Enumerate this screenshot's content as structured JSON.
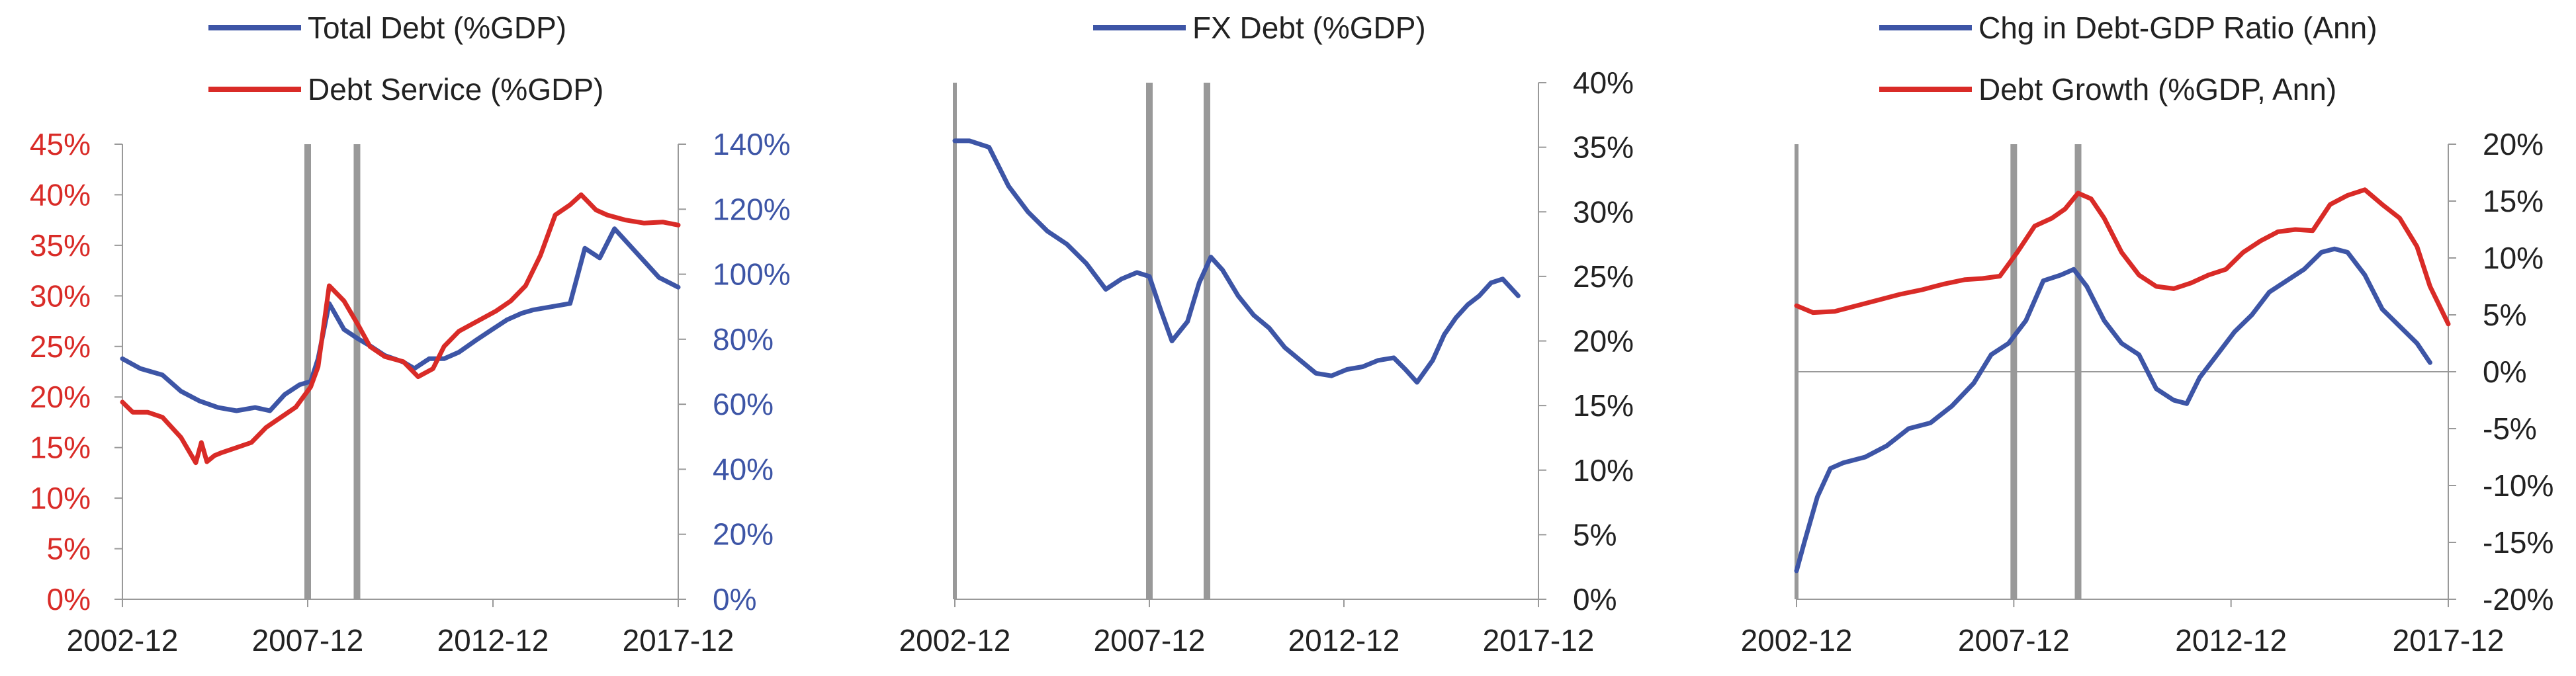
{
  "colors": {
    "blue": "#3d55a6",
    "red": "#d92b27",
    "axis": "#999999",
    "tick_text": "#222222",
    "marker": "#999999"
  },
  "chart_data": [
    {
      "type": "line",
      "title": "",
      "xlabel": "",
      "x_tick_labels": [
        "2002-12",
        "2007-12",
        "2012-12",
        "2017-12"
      ],
      "x_ticks": [
        2002.92,
        2007.92,
        2012.92,
        2017.92
      ],
      "xlim": [
        2002.92,
        2017.92
      ],
      "vlines": [
        2007.92,
        2009.25
      ],
      "legend": [
        "Total Debt (%GDP)",
        "Debt Service (%GDP)"
      ],
      "legend_position": "top",
      "grid": false,
      "y_left": {
        "label": "",
        "ylim": [
          0,
          45
        ],
        "ticks": [
          0,
          5,
          10,
          15,
          20,
          25,
          30,
          35,
          40,
          45
        ],
        "tick_labels": [
          "0%",
          "5%",
          "10%",
          "15%",
          "20%",
          "25%",
          "30%",
          "35%",
          "40%",
          "45%"
        ],
        "color": "red"
      },
      "y_right": {
        "label": "",
        "ylim": [
          0,
          140
        ],
        "ticks": [
          0,
          20,
          40,
          60,
          80,
          100,
          120,
          140
        ],
        "tick_labels": [
          "0%",
          "20%",
          "40%",
          "60%",
          "80%",
          "100%",
          "120%",
          "140%"
        ],
        "color": "blue"
      },
      "series": [
        {
          "name": "Total Debt (%GDP)",
          "axis": "right",
          "color": "blue",
          "x": [
            2002.92,
            2003.4,
            2004.0,
            2004.5,
            2005.0,
            2005.5,
            2006.0,
            2006.5,
            2006.9,
            2007.3,
            2007.7,
            2008.0,
            2008.2,
            2008.5,
            2008.9,
            2009.3,
            2009.6,
            2010.0,
            2010.5,
            2010.8,
            2011.2,
            2011.6,
            2012.0,
            2012.5,
            2012.9,
            2013.3,
            2013.7,
            2014.0,
            2014.5,
            2015.0,
            2015.4,
            2015.8,
            2016.2,
            2016.6,
            2017.0,
            2017.4,
            2017.92
          ],
          "values": [
            74,
            71,
            69,
            64,
            61,
            59,
            58,
            59,
            58,
            63,
            66,
            67,
            74,
            91,
            83,
            80,
            78,
            75,
            73,
            71,
            74,
            74,
            76,
            80,
            83,
            86,
            88,
            89,
            90,
            91,
            108,
            105,
            114,
            109,
            104,
            99,
            96
          ]
        },
        {
          "name": "Debt Service (%GDP)",
          "axis": "left",
          "color": "red",
          "x": [
            2002.92,
            2003.2,
            2003.6,
            2004.0,
            2004.5,
            2004.9,
            2005.05,
            2005.2,
            2005.4,
            2005.6,
            2006.0,
            2006.4,
            2006.8,
            2007.2,
            2007.6,
            2008.0,
            2008.2,
            2008.5,
            2008.9,
            2009.3,
            2009.6,
            2010.0,
            2010.5,
            2010.9,
            2011.3,
            2011.6,
            2012.0,
            2012.5,
            2013.0,
            2013.4,
            2013.8,
            2014.2,
            2014.6,
            2015.0,
            2015.3,
            2015.7,
            2016.0,
            2016.5,
            2017.0,
            2017.5,
            2017.92
          ],
          "values": [
            19.5,
            18.5,
            18.5,
            18,
            16,
            13.5,
            15.5,
            13.6,
            14.2,
            14.5,
            15,
            15.5,
            17,
            18,
            19,
            21,
            23,
            31,
            29.5,
            27,
            25,
            24,
            23.5,
            22,
            22.8,
            25,
            26.5,
            27.5,
            28.5,
            29.5,
            31,
            34,
            38,
            39,
            40,
            38.5,
            38,
            37.5,
            37.2,
            37.3,
            37
          ]
        }
      ]
    },
    {
      "type": "line",
      "title": "",
      "xlabel": "",
      "x_tick_labels": [
        "2002-12",
        "2007-12",
        "2012-12",
        "2017-12"
      ],
      "x_ticks": [
        2002.92,
        2007.92,
        2012.92,
        2017.92
      ],
      "xlim": [
        2002.92,
        2017.92
      ],
      "vlines": [
        2007.92,
        2009.4
      ],
      "legend": [
        "FX Debt (%GDP)"
      ],
      "legend_position": "top",
      "grid": false,
      "y_right": {
        "label": "",
        "ylim": [
          0,
          40
        ],
        "ticks": [
          0,
          5,
          10,
          15,
          20,
          25,
          30,
          35,
          40
        ],
        "tick_labels": [
          "0%",
          "5%",
          "10%",
          "15%",
          "20%",
          "25%",
          "30%",
          "35%",
          "40%"
        ],
        "color": "tick_text"
      },
      "series": [
        {
          "name": "FX Debt (%GDP)",
          "axis": "right",
          "color": "blue",
          "x": [
            2002.92,
            2003.3,
            2003.8,
            2004.3,
            2004.8,
            2005.3,
            2005.8,
            2006.3,
            2006.8,
            2007.2,
            2007.6,
            2007.92,
            2008.2,
            2008.5,
            2008.9,
            2009.2,
            2009.5,
            2009.8,
            2010.2,
            2010.6,
            2011.0,
            2011.4,
            2011.8,
            2012.2,
            2012.6,
            2013.0,
            2013.4,
            2013.8,
            2014.2,
            2014.5,
            2014.8,
            2015.2,
            2015.5,
            2015.8,
            2016.1,
            2016.4,
            2016.7,
            2017.0,
            2017.4
          ],
          "values": [
            35.5,
            35.5,
            35,
            32,
            30,
            28.5,
            27.5,
            26,
            24,
            24.8,
            25.3,
            25,
            22.5,
            20,
            21.5,
            24.5,
            26.5,
            25.5,
            23.5,
            22,
            21,
            19.5,
            18.5,
            17.5,
            17.3,
            17.8,
            18,
            18.5,
            18.7,
            17.8,
            16.8,
            18.5,
            20.5,
            21.8,
            22.8,
            23.5,
            24.5,
            24.8,
            23.5
          ]
        }
      ]
    },
    {
      "type": "line",
      "title": "",
      "xlabel": "",
      "x_tick_labels": [
        "2002-12",
        "2007-12",
        "2012-12",
        "2017-12"
      ],
      "x_ticks": [
        2002.92,
        2007.92,
        2012.92,
        2017.92
      ],
      "xlim": [
        2002.92,
        2017.92
      ],
      "vlines": [
        2007.92,
        2009.4
      ],
      "legend": [
        "Chg in Debt-GDP Ratio (Ann)",
        "Debt Growth (%GDP, Ann)"
      ],
      "legend_position": "top",
      "grid": false,
      "y_right": {
        "label": "",
        "ylim": [
          -20,
          20
        ],
        "ticks": [
          -20,
          -15,
          -10,
          -5,
          0,
          5,
          10,
          15,
          20
        ],
        "tick_labels": [
          "-20%",
          "-15%",
          "-10%",
          "-5%",
          "0%",
          "5%",
          "10%",
          "15%",
          "20%"
        ],
        "color": "tick_text"
      },
      "series": [
        {
          "name": "Chg in Debt-GDP Ratio (Ann)",
          "axis": "right",
          "color": "blue",
          "x": [
            2002.92,
            2003.1,
            2003.4,
            2003.7,
            2004.0,
            2004.5,
            2005.0,
            2005.5,
            2006.0,
            2006.5,
            2007.0,
            2007.4,
            2007.8,
            2008.2,
            2008.6,
            2009.0,
            2009.3,
            2009.6,
            2010.0,
            2010.4,
            2010.8,
            2011.2,
            2011.6,
            2011.9,
            2012.2,
            2012.6,
            2013.0,
            2013.4,
            2013.8,
            2014.2,
            2014.6,
            2015.0,
            2015.3,
            2015.6,
            2016.0,
            2016.4,
            2016.8,
            2017.2,
            2017.5
          ],
          "values": [
            -17.5,
            -15,
            -11,
            -8.5,
            -8,
            -7.5,
            -6.5,
            -5,
            -4.5,
            -3,
            -1,
            1.5,
            2.5,
            4.5,
            8,
            8.5,
            9,
            7.5,
            4.5,
            2.5,
            1.5,
            -1.5,
            -2.5,
            -2.8,
            -0.5,
            1.5,
            3.5,
            5,
            7,
            8,
            9,
            10.5,
            10.8,
            10.5,
            8.5,
            5.5,
            4,
            2.5,
            0.8
          ]
        },
        {
          "name": "Debt Growth (%GDP, Ann)",
          "axis": "right",
          "color": "red",
          "x": [
            2002.92,
            2003.3,
            2003.8,
            2004.3,
            2004.8,
            2005.3,
            2005.8,
            2006.3,
            2006.8,
            2007.2,
            2007.6,
            2008.0,
            2008.4,
            2008.8,
            2009.1,
            2009.4,
            2009.7,
            2010.0,
            2010.4,
            2010.8,
            2011.2,
            2011.6,
            2012.0,
            2012.4,
            2012.8,
            2013.2,
            2013.6,
            2014.0,
            2014.4,
            2014.8,
            2015.2,
            2015.6,
            2016.0,
            2016.4,
            2016.8,
            2017.2,
            2017.5,
            2017.92
          ],
          "values": [
            5.8,
            5.2,
            5.3,
            5.8,
            6.3,
            6.8,
            7.2,
            7.7,
            8.1,
            8.2,
            8.4,
            10.5,
            12.8,
            13.5,
            14.3,
            15.7,
            15.2,
            13.5,
            10.5,
            8.5,
            7.5,
            7.3,
            7.8,
            8.5,
            9,
            10.5,
            11.5,
            12.3,
            12.5,
            12.4,
            14.7,
            15.5,
            16,
            14.7,
            13.5,
            11,
            7.5,
            4.2
          ]
        }
      ]
    }
  ]
}
